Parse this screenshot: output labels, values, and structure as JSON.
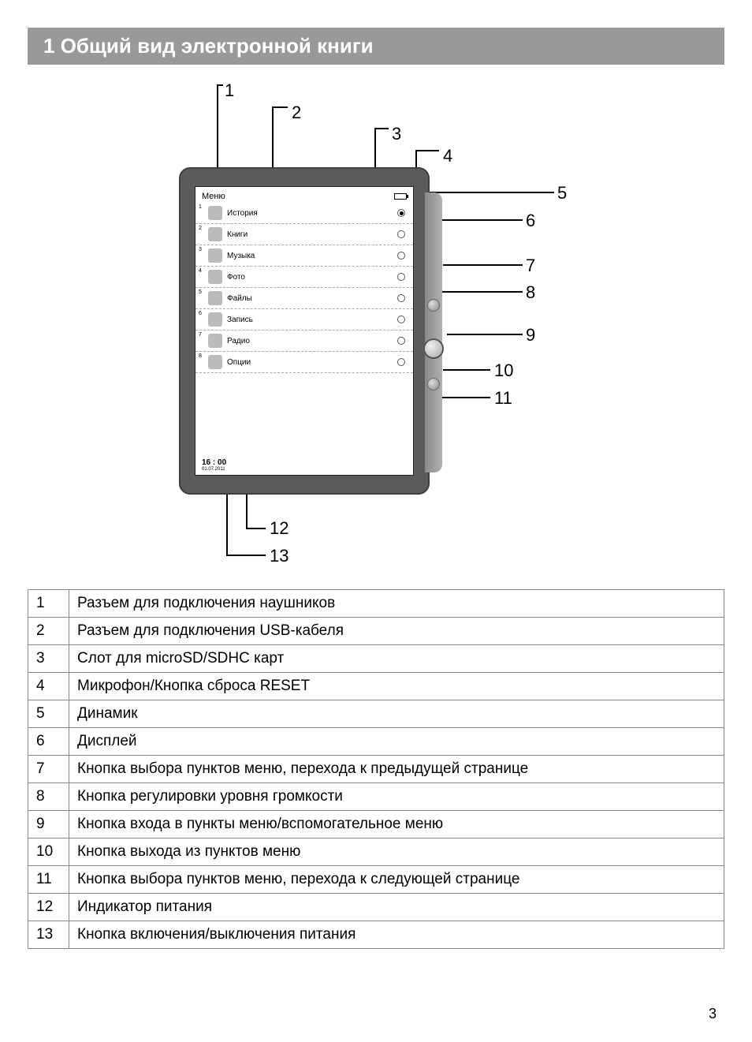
{
  "header": {
    "title": "1 Общий вид электронной книги"
  },
  "page_number": "3",
  "device": {
    "menu_title": "Меню",
    "items": [
      {
        "n": "1",
        "label": "История",
        "selected": true
      },
      {
        "n": "2",
        "label": "Книги",
        "selected": false
      },
      {
        "n": "3",
        "label": "Музыка",
        "selected": false
      },
      {
        "n": "4",
        "label": "Фото",
        "selected": false
      },
      {
        "n": "5",
        "label": "Файлы",
        "selected": false
      },
      {
        "n": "6",
        "label": "Запись",
        "selected": false
      },
      {
        "n": "7",
        "label": "Радио",
        "selected": false
      },
      {
        "n": "8",
        "label": "Опции",
        "selected": false
      }
    ],
    "clock": "16 : 00",
    "date": "01.07.2011"
  },
  "callouts": {
    "c1": "1",
    "c2": "2",
    "c3": "3",
    "c4": "4",
    "c5": "5",
    "c6": "6",
    "c7": "7",
    "c8": "8",
    "c9": "9",
    "c10": "10",
    "c11": "11",
    "c12": "12",
    "c13": "13"
  },
  "legend": {
    "rows": [
      {
        "n": "1",
        "text": "Разъем для подключения наушников"
      },
      {
        "n": "2",
        "text": "Разъем для подключения USB-кабеля"
      },
      {
        "n": "3",
        "text": "Слот для microSD/SDHC карт"
      },
      {
        "n": "4",
        "text": "Микрофон/Кнопка сброса RESET"
      },
      {
        "n": "5",
        "text": "Динамик"
      },
      {
        "n": "6",
        "text": "Дисплей"
      },
      {
        "n": "7",
        "text": "Кнопка выбора пунктов меню, перехода к предыдущей странице"
      },
      {
        "n": "8",
        "text": "Кнопка регулировки уровня громкости"
      },
      {
        "n": "9",
        "text": "Кнопка входа в пункты меню/вспомогательное меню"
      },
      {
        "n": "10",
        "text": "Кнопка выхода из пунктов меню"
      },
      {
        "n": "11",
        "text": "Кнопка выбора пунктов меню, перехода к следующей странице"
      },
      {
        "n": "12",
        "text": "Индикатор питания"
      },
      {
        "n": "13",
        "text": "Кнопка включения/выключения питания"
      }
    ]
  },
  "style": {
    "header_bg": "#999999",
    "header_fg": "#ffffff",
    "device_body": "#5a5a5a",
    "table_border": "#888888",
    "page_bg": "#ffffff"
  }
}
